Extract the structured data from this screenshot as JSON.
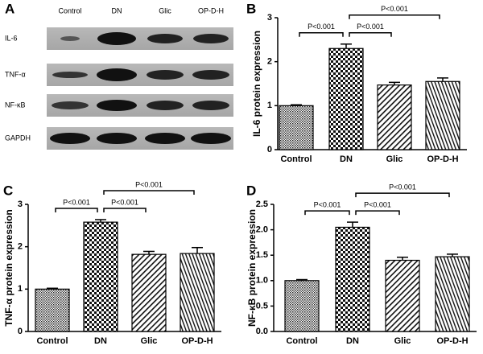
{
  "blot": {
    "label": "A",
    "columns": [
      "Control",
      "DN",
      "Glic",
      "OP-D-H"
    ],
    "rows": [
      "IL-6",
      "TNF-α",
      "NF-κB",
      "GAPDH"
    ]
  },
  "chart_data": [
    {
      "type": "bar",
      "panel": "B",
      "ylabel": "IL-6 protein expression",
      "categories": [
        "Control",
        "DN",
        "Glic",
        "OP-D-H"
      ],
      "values": [
        1.0,
        2.3,
        1.47,
        1.55
      ],
      "errors": [
        0.02,
        0.1,
        0.06,
        0.08
      ],
      "ylim": [
        0,
        3
      ],
      "yticks": [
        0,
        1,
        2,
        3
      ],
      "comparisons": [
        {
          "pair": [
            0,
            1
          ],
          "label": "P<0.001"
        },
        {
          "pair": [
            1,
            2
          ],
          "label": "P<0.001"
        },
        {
          "pair": [
            1,
            3
          ],
          "label": "P<0.001"
        }
      ]
    },
    {
      "type": "bar",
      "panel": "C",
      "ylabel": "TNF-α protein expression",
      "categories": [
        "Control",
        "DN",
        "Glic",
        "OP-D-H"
      ],
      "values": [
        1.0,
        2.58,
        1.82,
        1.84
      ],
      "errors": [
        0.02,
        0.06,
        0.07,
        0.14
      ],
      "ylim": [
        0,
        3
      ],
      "yticks": [
        0,
        1,
        2,
        3
      ],
      "comparisons": [
        {
          "pair": [
            0,
            1
          ],
          "label": "P<0.001"
        },
        {
          "pair": [
            1,
            2
          ],
          "label": "P<0.001"
        },
        {
          "pair": [
            1,
            3
          ],
          "label": "P<0.001"
        }
      ]
    },
    {
      "type": "bar",
      "panel": "D",
      "ylabel": "NF-κB protein expression",
      "categories": [
        "Control",
        "DN",
        "Glic",
        "OP-D-H"
      ],
      "values": [
        1.0,
        2.05,
        1.4,
        1.47
      ],
      "errors": [
        0.02,
        0.1,
        0.06,
        0.05
      ],
      "ylim": [
        0,
        2.5
      ],
      "yticks": [
        {
          "value": 0,
          "label": "0.0"
        },
        {
          "value": 0.5,
          "label": "0.5"
        },
        {
          "value": 1,
          "label": "1.0"
        },
        {
          "value": 1.5,
          "label": "1.5"
        },
        {
          "value": 2,
          "label": "2.0"
        },
        {
          "value": 2.5,
          "label": "2.5"
        }
      ],
      "comparisons": [
        {
          "pair": [
            0,
            1
          ],
          "label": "P<0.001"
        },
        {
          "pair": [
            1,
            2
          ],
          "label": "P<0.001"
        },
        {
          "pair": [
            1,
            3
          ],
          "label": "P<0.001"
        }
      ]
    }
  ]
}
